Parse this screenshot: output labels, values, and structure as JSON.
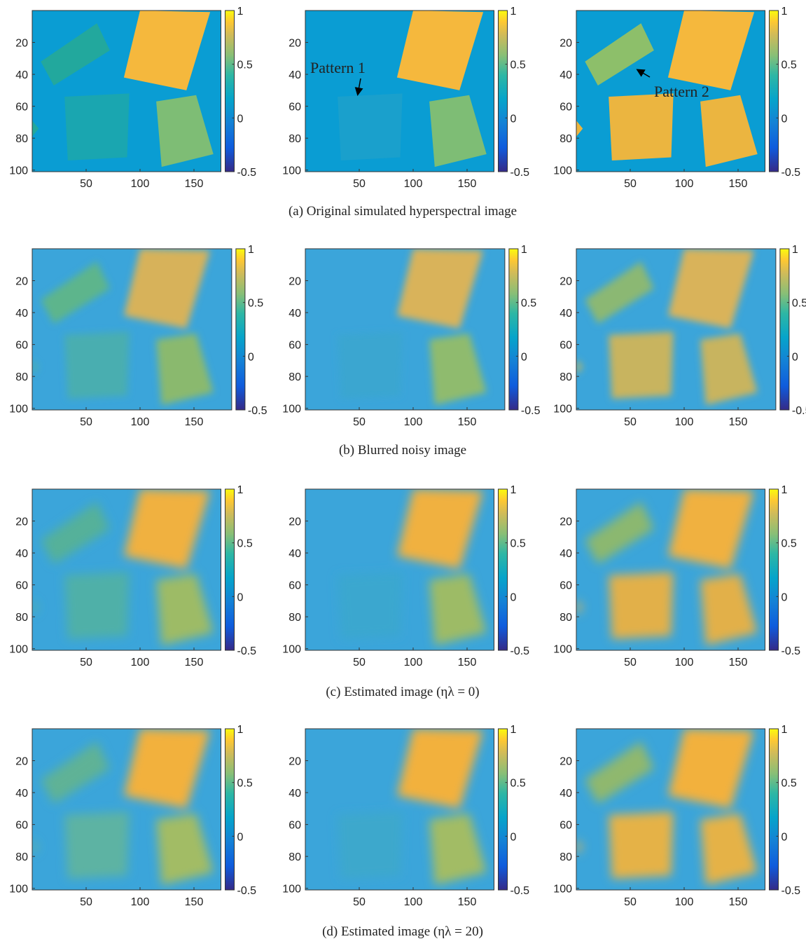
{
  "figure": {
    "rows": [
      {
        "caption": "(a) Original simulated hyperspectral image",
        "xlim": [
          0,
          175
        ],
        "ylim": [
          0,
          101
        ],
        "xticks": [
          50,
          100,
          150
        ],
        "yticks": [
          20,
          40,
          60,
          80,
          100
        ],
        "clim": [
          -0.5,
          1
        ],
        "cticks": [
          -0.5,
          0,
          0.5,
          1
        ]
      },
      {
        "caption": "(b) Blurred noisy image",
        "xlim": [
          0,
          185
        ],
        "ylim": [
          0,
          101
        ],
        "xticks": [
          50,
          100,
          150
        ],
        "yticks": [
          20,
          40,
          60,
          80,
          100
        ],
        "clim": [
          -0.5,
          1
        ],
        "cticks": [
          -0.5,
          0,
          0.5,
          1
        ]
      },
      {
        "caption": "(c) Estimated image (ηλ = 0)",
        "xlim": [
          0,
          175
        ],
        "ylim": [
          0,
          101
        ],
        "xticks": [
          50,
          100,
          150
        ],
        "yticks": [
          20,
          40,
          60,
          80,
          100
        ],
        "clim": [
          -0.5,
          1
        ],
        "cticks": [
          -0.5,
          0,
          0.5,
          1
        ]
      },
      {
        "caption": "(d) Estimated image (ηλ = 20)",
        "xlim": [
          0,
          175
        ],
        "ylim": [
          0,
          101
        ],
        "xticks": [
          50,
          100,
          150
        ],
        "yticks": [
          20,
          40,
          60,
          80,
          100
        ],
        "clim": [
          -0.5,
          1
        ],
        "cticks": [
          -0.5,
          0,
          0.5,
          1
        ]
      }
    ],
    "annotations": [
      {
        "text": "Pattern 1"
      },
      {
        "text": "Pattern 2"
      }
    ]
  }
}
